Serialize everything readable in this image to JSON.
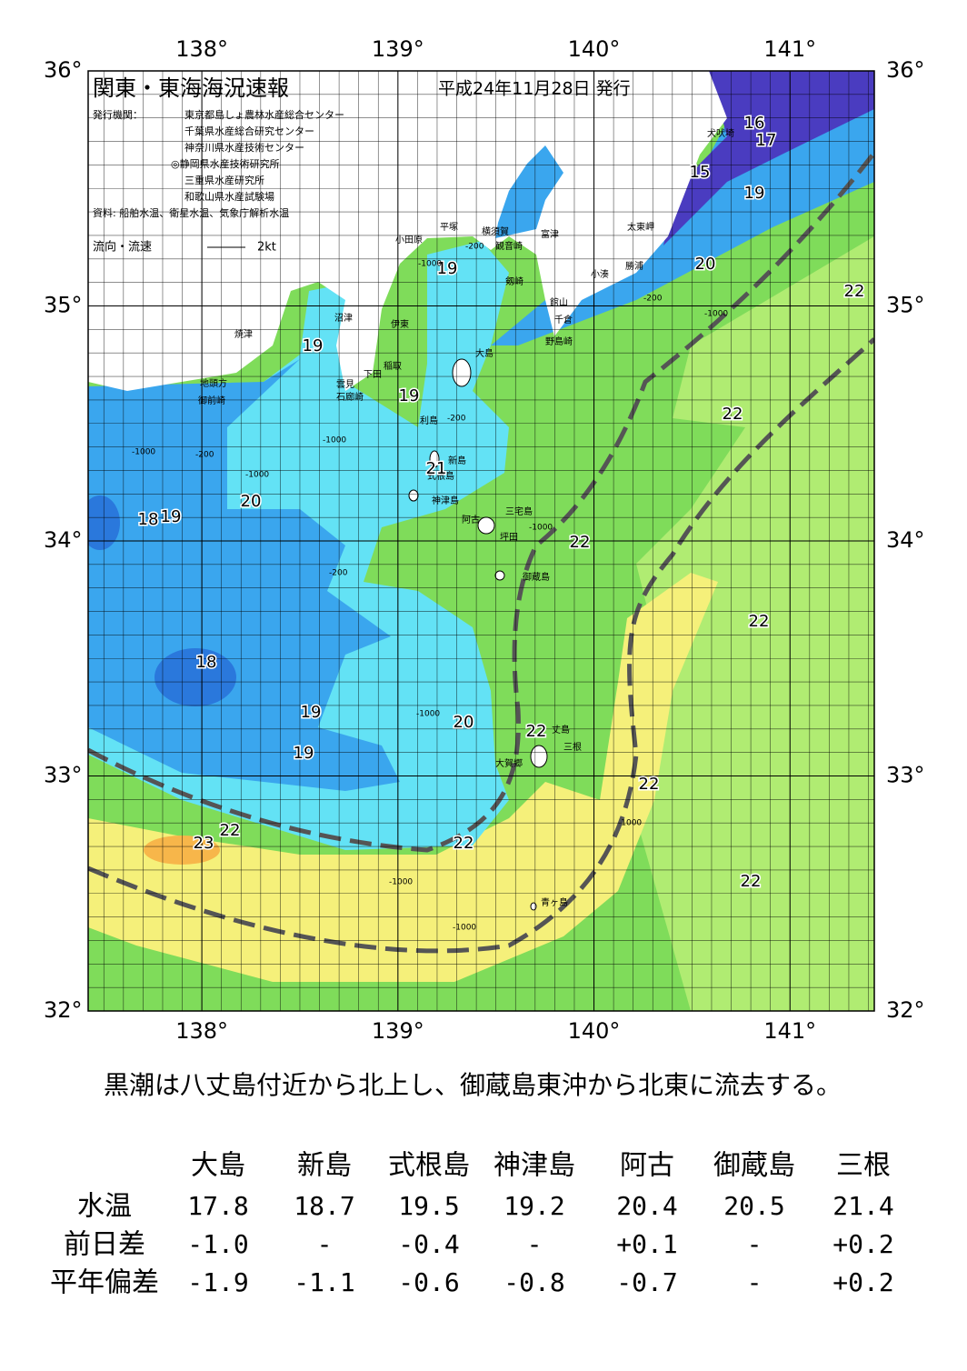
{
  "map": {
    "lon_range": [
      137.42,
      141.43
    ],
    "lat_range": [
      32,
      36
    ],
    "lon_ticks": [
      {
        "value": 138,
        "label": "138°"
      },
      {
        "value": 139,
        "label": "139°"
      },
      {
        "value": 140,
        "label": "140°"
      },
      {
        "value": 141,
        "label": "141°"
      }
    ],
    "lat_ticks": [
      {
        "value": 36,
        "label": "36°"
      },
      {
        "value": 35,
        "label": "35°"
      },
      {
        "value": 34,
        "label": "34°"
      },
      {
        "value": 33,
        "label": "33°"
      },
      {
        "value": 32,
        "label": "32°"
      }
    ],
    "title": "関東・東海海況速報",
    "date": "平成24年11月28日 発行",
    "issuer_label": "発行機関：",
    "issuers": [
      "東京都島しょ農林水産総合センター",
      "千葉県水産総合研究センター",
      "神奈川県水産技術センター",
      "◎静岡県水産技術研究所",
      "三重県水産研究所",
      "和歌山県水産試験場"
    ],
    "source": "資料: 船舶水温、衛星水温、気象庁解析水温",
    "legend_label": "流向・流速",
    "legend_scale": "2kt",
    "places": [
      "犬吠埼",
      "太東岬",
      "勝浦",
      "小湊",
      "富津",
      "横須賀",
      "観音崎",
      "平塚",
      "小田原",
      "剱崎",
      "館山",
      "千倉",
      "野島崎",
      "沼津",
      "伊東",
      "焼津",
      "稲取",
      "下田",
      "雲見",
      "石廊崎",
      "地頭方",
      "御前崎",
      "大島",
      "利島",
      "新島",
      "式根島",
      "神津島",
      "三宅島",
      "阿古",
      "坪田",
      "御蔵島",
      "丈島",
      "三根",
      "大賀郷",
      "青ヶ島"
    ],
    "contour_labels": [
      "16",
      "17",
      "15",
      "19",
      "20",
      "22",
      "22",
      "19",
      "19",
      "19",
      "20",
      "21",
      "18",
      "19",
      "22",
      "22",
      "18",
      "19",
      "20",
      "19",
      "22",
      "22",
      "22",
      "23",
      "22",
      "22"
    ],
    "depth_labels": [
      "-1000",
      "-200",
      "-1000",
      "-1000",
      "-200",
      "-1000",
      "-1000",
      "-1000",
      "-1000",
      "-1000",
      "-200",
      "-1000",
      "-200",
      "-200",
      "-1000"
    ]
  },
  "summary": "黒潮は八丈島付近から北上し、御蔵島東沖から北東に流去する。",
  "table": {
    "columns": [
      "大島",
      "新島",
      "式根島",
      "神津島",
      "阿古",
      "御蔵島",
      "三根"
    ],
    "rows": [
      {
        "label": "水温",
        "values": [
          "17.8",
          "18.7",
          "19.5",
          "19.2",
          "20.4",
          "20.5",
          "21.4"
        ]
      },
      {
        "label": "前日差",
        "values": [
          "-1.0",
          "-",
          "-0.4",
          "-",
          "+0.1",
          "-",
          "+0.2"
        ]
      },
      {
        "label": "平年偏差",
        "values": [
          "-1.9",
          "-1.1",
          "-0.6",
          "-0.8",
          "-0.7",
          "-",
          "+0.2"
        ]
      }
    ]
  }
}
